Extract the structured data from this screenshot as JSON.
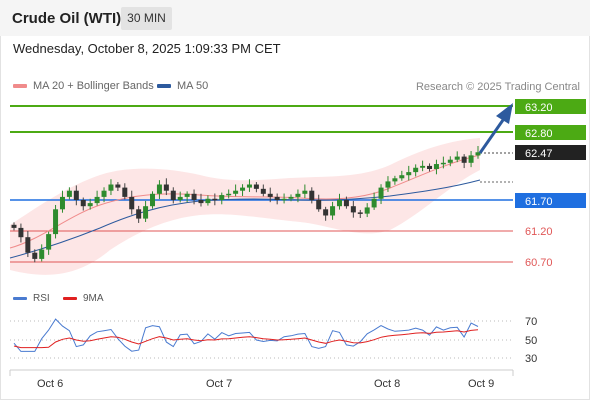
{
  "header": {
    "instrument": "Crude Oil (WTI)",
    "timeframe": "30 MIN"
  },
  "timestamp": "Wednesday, October 8, 2025 1:09:33 PM CET",
  "legend": {
    "ma20": {
      "label": "MA 20 + Bollinger Bands",
      "color": "#f08b8b"
    },
    "ma50": {
      "label": "MA 50",
      "color": "#2d5a9e"
    },
    "copyright": "Research © 2025 Trading Central"
  },
  "levels": [
    {
      "value": "63.20",
      "kind": "resistance-target",
      "color": "#4caa14"
    },
    {
      "value": "62.80",
      "kind": "resistance-target",
      "color": "#4caa14"
    },
    {
      "value": "62.47",
      "kind": "last-price",
      "color": "#222222"
    },
    {
      "value": "61.70",
      "kind": "pivot",
      "color": "#1f6fe0"
    },
    {
      "value": "61.20",
      "kind": "support",
      "color": "#e05757"
    },
    {
      "value": "60.70",
      "kind": "support",
      "color": "#e05757"
    }
  ],
  "rsi_panel": {
    "legend": [
      {
        "label": "RSI",
        "color": "#4a7bd0"
      },
      {
        "label": "9MA",
        "color": "#e02020"
      }
    ],
    "ticks": [
      "70",
      "50",
      "30"
    ]
  },
  "x_axis": [
    "Oct 6",
    "Oct 7",
    "Oct 8",
    "Oct 9"
  ],
  "chart_data": {
    "type": "candlestick",
    "x_ticks": [
      "Oct 6",
      "Oct 7",
      "Oct 8",
      "Oct 9"
    ],
    "price_levels": [
      63.2,
      62.8,
      62.47,
      61.7,
      61.2,
      60.7
    ],
    "last_price": 62.47,
    "close_series": [
      61.25,
      61.1,
      60.85,
      60.75,
      60.9,
      61.15,
      61.55,
      61.75,
      61.85,
      61.7,
      61.6,
      61.65,
      61.75,
      61.85,
      61.95,
      61.9,
      61.75,
      61.55,
      61.4,
      61.6,
      61.8,
      61.95,
      61.85,
      61.7,
      61.75,
      61.8,
      61.7,
      61.65,
      61.72,
      61.7,
      61.78,
      61.8,
      61.85,
      61.9,
      61.95,
      61.88,
      61.8,
      61.75,
      61.7,
      61.72,
      61.75,
      61.8,
      61.85,
      61.7,
      61.55,
      61.45,
      61.6,
      61.7,
      61.6,
      61.5,
      61.48,
      61.58,
      61.72,
      61.9,
      62.0,
      62.05,
      62.1,
      62.15,
      62.22,
      62.25,
      62.2,
      62.28,
      62.3,
      62.35,
      62.4,
      62.3,
      62.42,
      62.47
    ],
    "rsi_ticks": [
      70,
      50,
      30
    ],
    "forecast_direction": "up"
  }
}
